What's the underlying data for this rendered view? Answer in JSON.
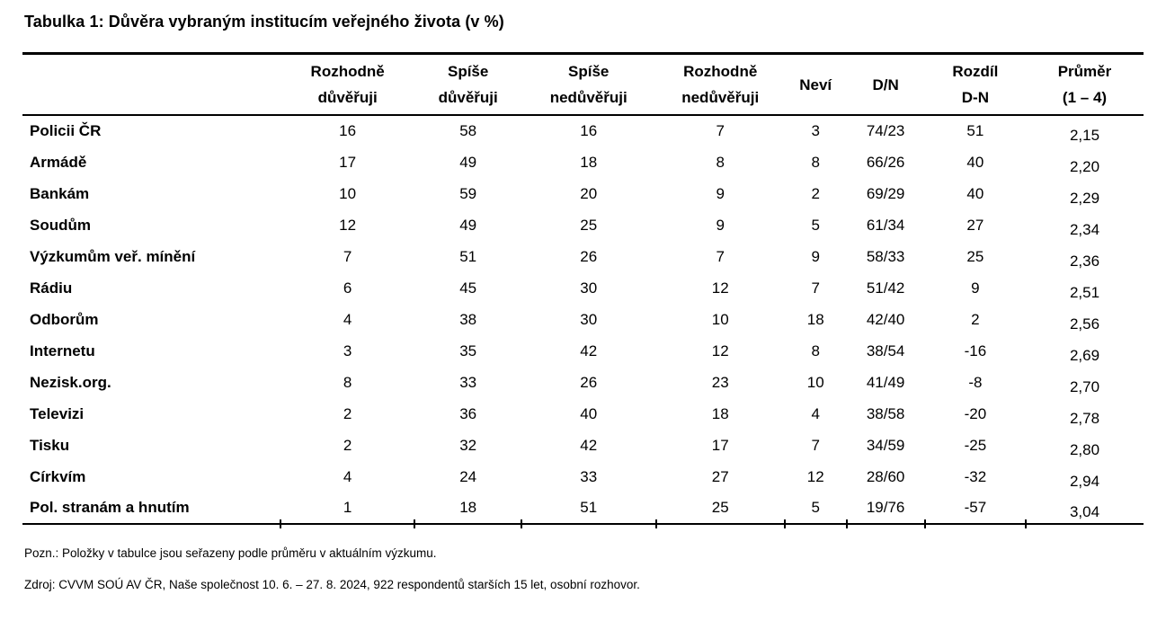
{
  "title": "Tabulka 1: Důvěra vybraným institucím veřejného života (v %)",
  "table": {
    "headers": [
      {
        "line1": "Rozhodně",
        "line2": "důvěřuji"
      },
      {
        "line1": "Spíše",
        "line2": "důvěřuji"
      },
      {
        "line1": "Spíše",
        "line2": "nedůvěřuji"
      },
      {
        "line1": "Rozhodně",
        "line2": "nedůvěřuji"
      },
      {
        "line1": "Neví",
        "line2": ""
      },
      {
        "line1": "D/N",
        "line2": ""
      },
      {
        "line1": "Rozdíl",
        "line2": "D-N"
      },
      {
        "line1": "Průměr",
        "line2": "(1 – 4)"
      }
    ],
    "rows": [
      {
        "label": "Policii ČR",
        "values": [
          "16",
          "58",
          "16",
          "7",
          "3",
          "74/23",
          "51",
          "2,15"
        ]
      },
      {
        "label": "Armádě",
        "values": [
          "17",
          "49",
          "18",
          "8",
          "8",
          "66/26",
          "40",
          "2,20"
        ]
      },
      {
        "label": "Bankám",
        "values": [
          "10",
          "59",
          "20",
          "9",
          "2",
          "69/29",
          "40",
          "2,29"
        ]
      },
      {
        "label": "Soudům",
        "values": [
          "12",
          "49",
          "25",
          "9",
          "5",
          "61/34",
          "27",
          "2,34"
        ]
      },
      {
        "label": "Výzkumům veř. mínění",
        "values": [
          "7",
          "51",
          "26",
          "7",
          "9",
          "58/33",
          "25",
          "2,36"
        ]
      },
      {
        "label": "Rádiu",
        "values": [
          "6",
          "45",
          "30",
          "12",
          "7",
          "51/42",
          "9",
          "2,51"
        ]
      },
      {
        "label": "Odborům",
        "values": [
          "4",
          "38",
          "30",
          "10",
          "18",
          "42/40",
          "2",
          "2,56"
        ]
      },
      {
        "label": "Internetu",
        "values": [
          "3",
          "35",
          "42",
          "12",
          "8",
          "38/54",
          "-16",
          "2,69"
        ]
      },
      {
        "label": "Nezisk.org.",
        "values": [
          "8",
          "33",
          "26",
          "23",
          "10",
          "41/49",
          "-8",
          "2,70"
        ]
      },
      {
        "label": "Televizi",
        "values": [
          "2",
          "36",
          "40",
          "18",
          "4",
          "38/58",
          "-20",
          "2,78"
        ]
      },
      {
        "label": "Tisku",
        "values": [
          "2",
          "32",
          "42",
          "17",
          "7",
          "34/59",
          "-25",
          "2,80"
        ]
      },
      {
        "label": "Církvím",
        "values": [
          "4",
          "24",
          "33",
          "27",
          "12",
          "28/60",
          "-32",
          "2,94"
        ]
      },
      {
        "label": "Pol. stranám a hnutím",
        "values": [
          "1",
          "18",
          "51",
          "25",
          "5",
          "19/76",
          "-57",
          "3,04"
        ]
      }
    ]
  },
  "notes": {
    "note": "Pozn.: Položky v tabulce jsou seřazeny podle průměru v aktuálním výzkumu.",
    "source": "Zdroj: CVVM SOÚ AV ČR, Naše společnost 10. 6. – 27. 8. 2024, 922 respondentů starších 15 let, osobní rozhovor."
  },
  "colors": {
    "text": "#000000",
    "background": "#ffffff",
    "border": "#000000"
  }
}
